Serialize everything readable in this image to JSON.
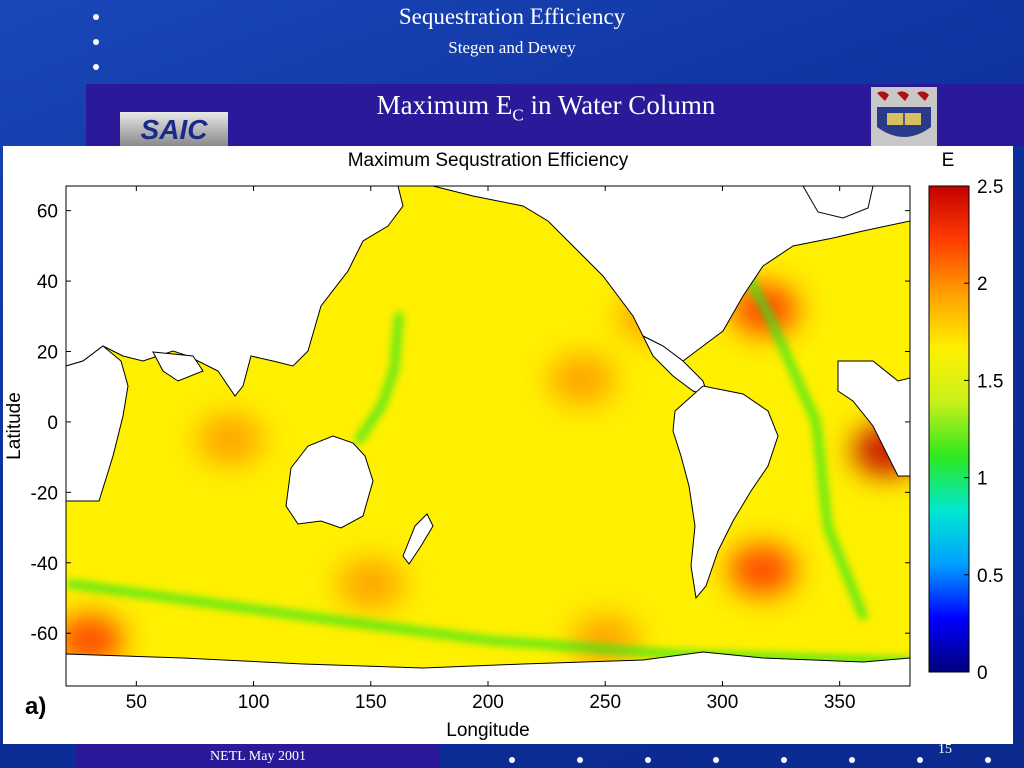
{
  "slide": {
    "title": "Sequestration Efficiency",
    "subtitle": "Stegen and Dewey",
    "heading_main": "Maximum E",
    "heading_sub": "C",
    "heading_tail": " in Water Column",
    "footer": "NETL May 2001",
    "page_number": "15",
    "logo_text": "SAIC",
    "panel_label": "a)"
  },
  "colors": {
    "background": "#0d2f9a",
    "band": "#2a1a9a",
    "land": "#ffffff",
    "ocean_typical": "#f2e43a"
  },
  "chart_data": {
    "type": "heatmap",
    "title": "Maximum Sequstration Efficiency",
    "xlabel": "Longitude",
    "ylabel": "Latitude",
    "xlim": [
      20,
      380
    ],
    "ylim": [
      -75,
      67
    ],
    "x_ticks": [
      50,
      100,
      150,
      200,
      250,
      300,
      350
    ],
    "y_ticks": [
      60,
      40,
      20,
      0,
      -20,
      -40,
      -60
    ],
    "colorbar": {
      "label": "E",
      "min": 0,
      "max": 2.5,
      "ticks": [
        2.5,
        2,
        1.5,
        1,
        0.5,
        0
      ],
      "colormap": [
        "#00007a",
        "#0000ff",
        "#00a0ff",
        "#00e8d0",
        "#2ee81e",
        "#c8f01a",
        "#fff000",
        "#ffa000",
        "#ff3c00",
        "#c40000"
      ]
    },
    "grid": false,
    "typical_value": 1.7,
    "regions": [
      {
        "lon": 318,
        "lat": 32,
        "value": 2.3
      },
      {
        "lon": 370,
        "lat": -8,
        "value": 2.4
      },
      {
        "lon": 317,
        "lat": -42,
        "value": 2.2
      },
      {
        "lon": 30,
        "lat": -62,
        "value": 2.1
      },
      {
        "lon": 90,
        "lat": -5,
        "value": 2.0
      },
      {
        "lon": 240,
        "lat": 12,
        "value": 2.0
      },
      {
        "lon": 150,
        "lat": -46,
        "value": 1.9
      },
      {
        "lon": 250,
        "lat": -62,
        "value": 1.9
      },
      {
        "lon": 270,
        "lat": 30,
        "value": 2.0
      }
    ],
    "low_bands": [
      {
        "points": [
          [
            22,
            -46
          ],
          [
            120,
            -55
          ],
          [
            200,
            -62
          ],
          [
            280,
            -66
          ],
          [
            380,
            -68
          ]
        ],
        "value": 1.0
      },
      {
        "points": [
          [
            300,
            55
          ],
          [
            320,
            30
          ],
          [
            340,
            0
          ],
          [
            345,
            -30
          ],
          [
            360,
            -55
          ]
        ],
        "value": 1.1
      },
      {
        "points": [
          [
            145,
            -5
          ],
          [
            155,
            5
          ],
          [
            160,
            15
          ],
          [
            162,
            30
          ]
        ],
        "value": 1.0
      }
    ]
  }
}
